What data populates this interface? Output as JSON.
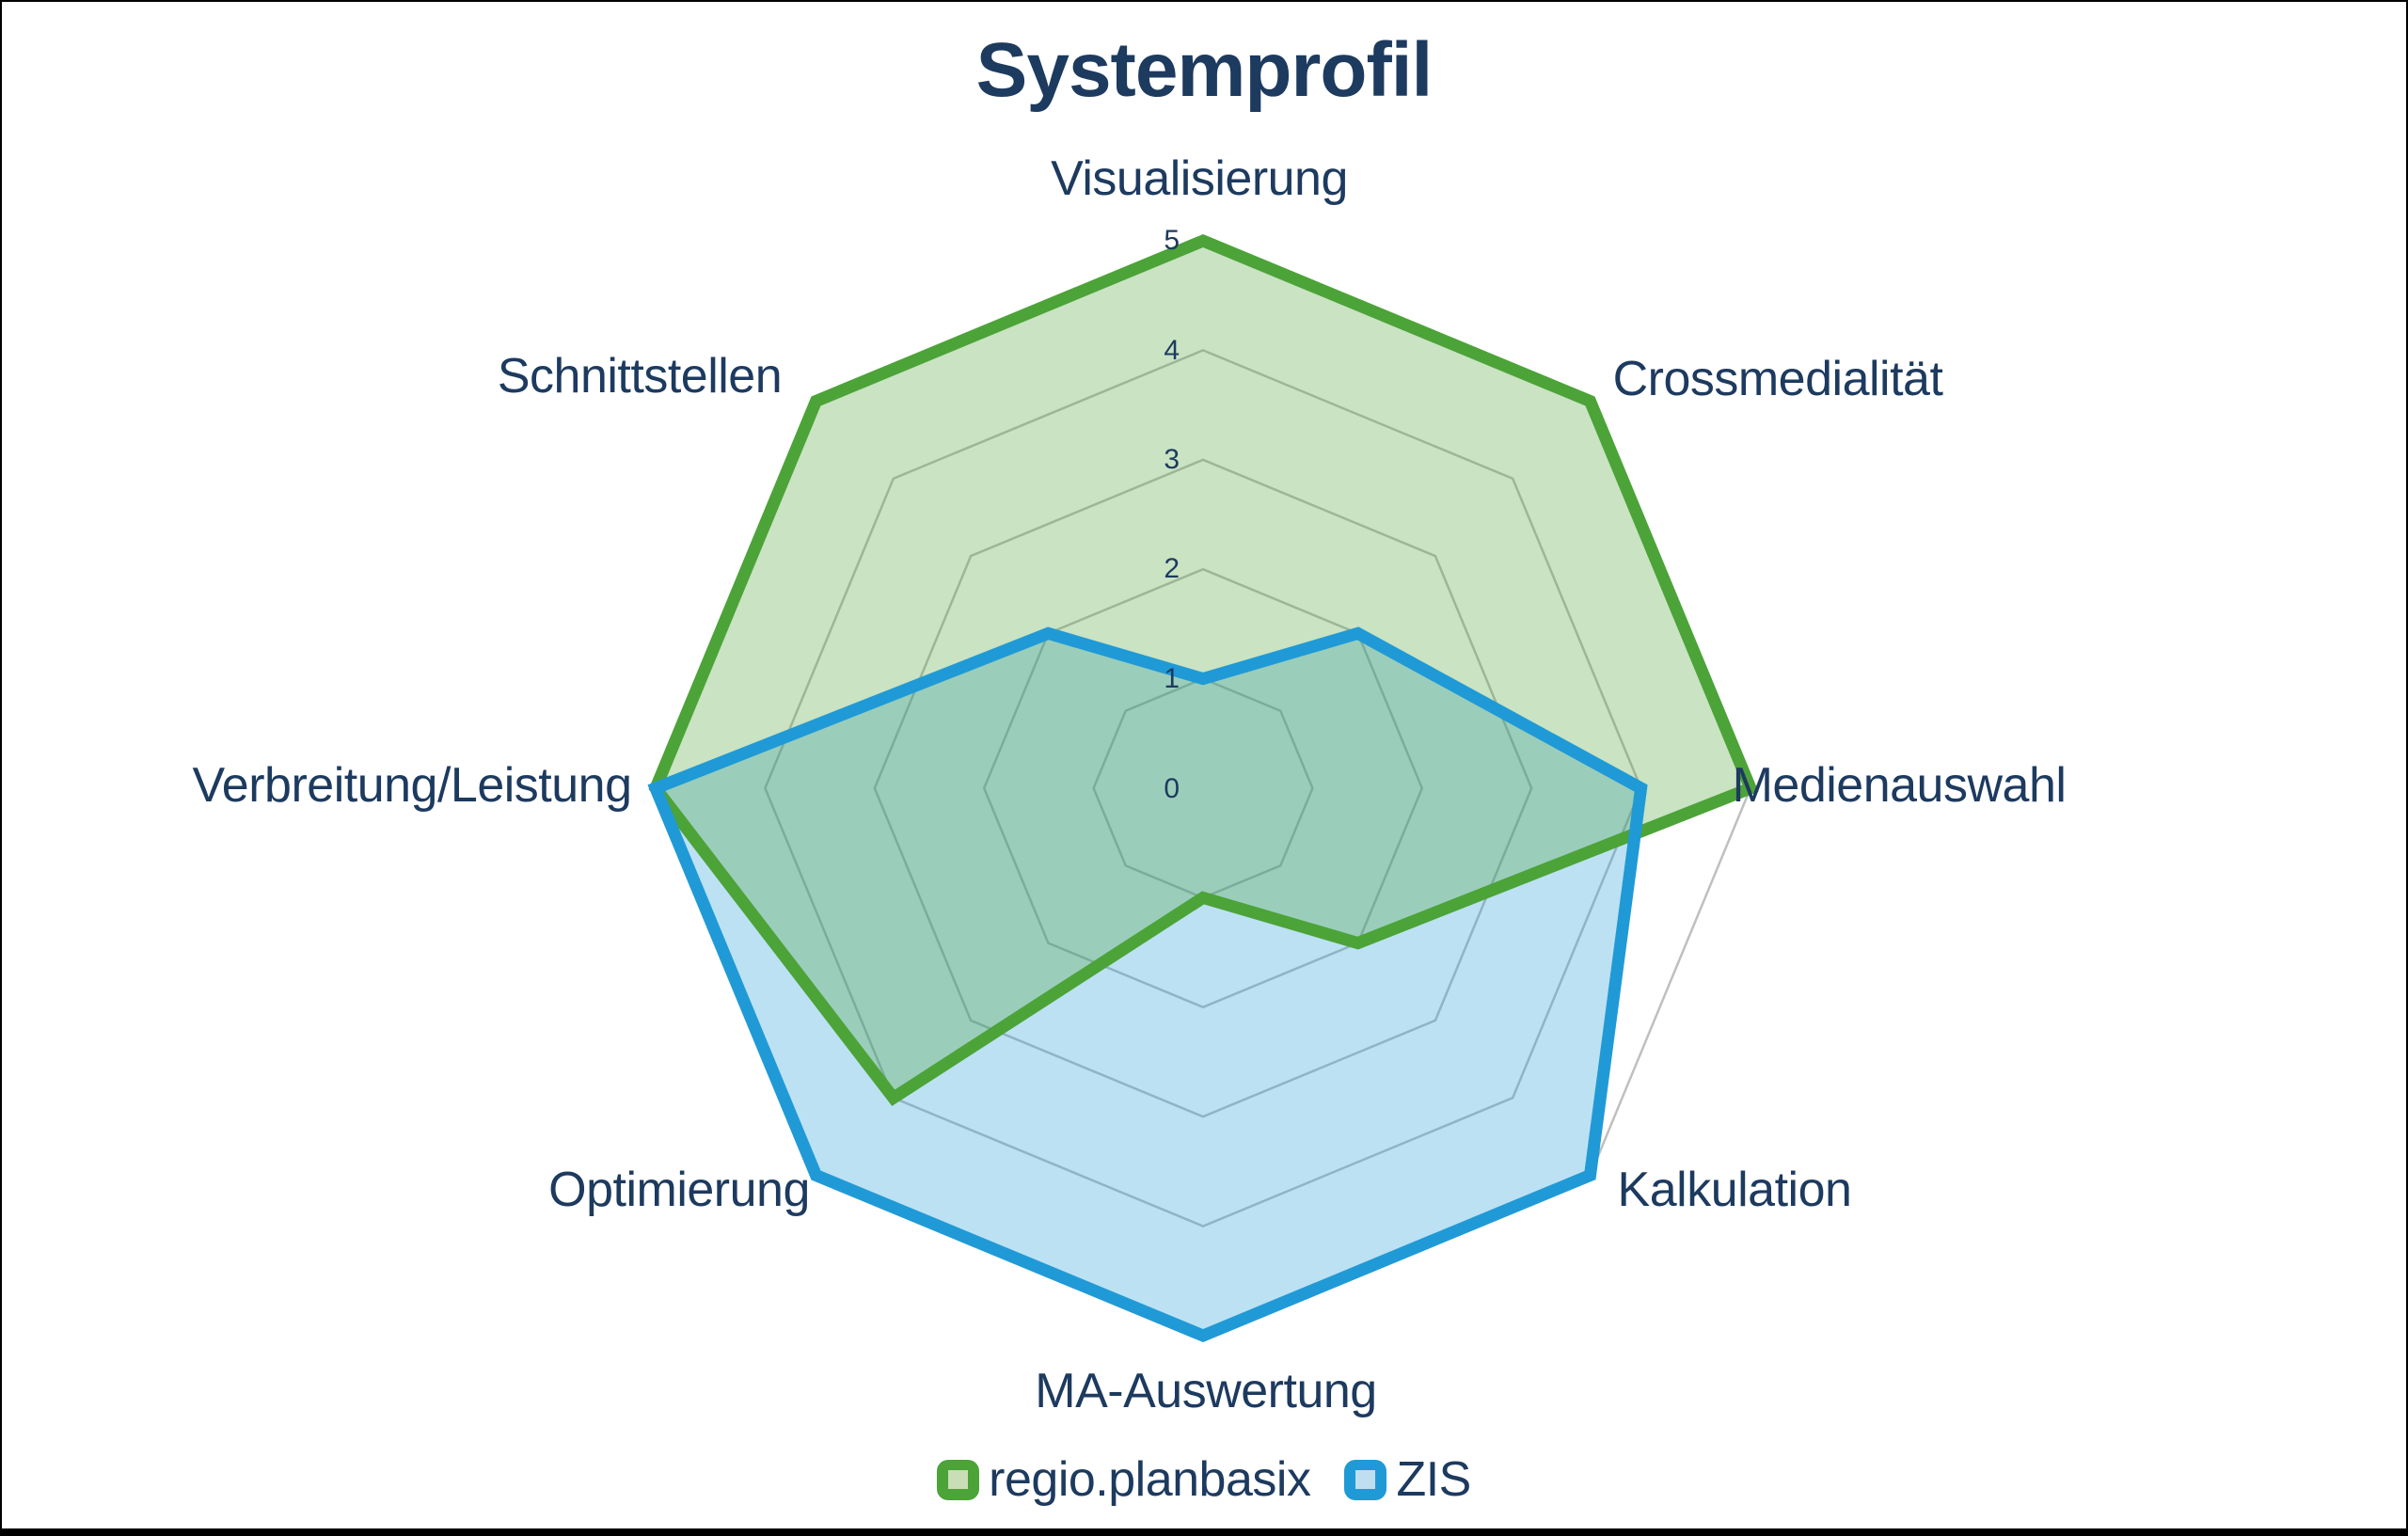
{
  "page": {
    "background": "#FFFFFF",
    "frame_color": "#000000"
  },
  "chart_data": {
    "type": "radar",
    "title": "Systemprofil",
    "axes": [
      "Visualisierung",
      "Crossmedialität",
      "Medienauswahl",
      "Kalkulation",
      "MA-Auswertung",
      "Optimierung",
      "Verbreitung/Leistung",
      "Schnittstellen"
    ],
    "ticks": [
      0,
      1,
      2,
      3,
      4,
      5
    ],
    "rlim": [
      0,
      5
    ],
    "grid": true,
    "grid_shape": "octagon-rings-no-spokes",
    "grid_color": "#BFBFBF",
    "text_color": "#1D3A5F",
    "legend_position": "bottom",
    "series": [
      {
        "name": "regio.planbasix",
        "values": [
          5,
          5,
          5,
          2,
          1,
          4,
          5,
          5
        ],
        "color": "#4CA338",
        "fill": "rgba(76,163,56,0.30)",
        "marker_inner": "#C9DDB6"
      },
      {
        "name": "ZIS",
        "values": [
          1,
          2,
          4,
          5,
          5,
          5,
          5,
          2
        ],
        "color": "#209AD6",
        "fill": "rgba(32,154,214,0.30)",
        "marker_inner": "#BFDFF0"
      }
    ]
  }
}
